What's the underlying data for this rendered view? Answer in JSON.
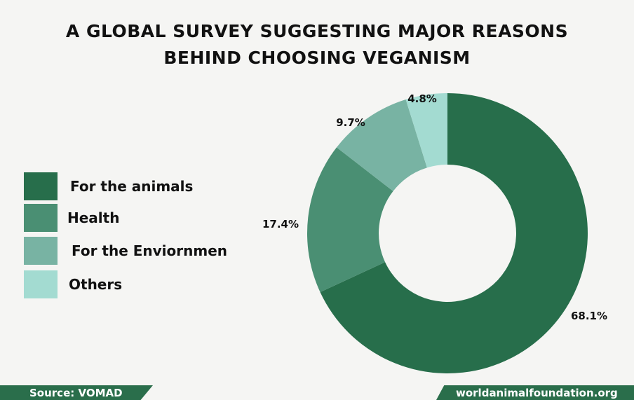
{
  "title_line1": "A GLOBAL SURVEY SUGGESTING MAJOR REASONS",
  "title_line2": "BEHIND CHOOSING VEGANISM",
  "source": "Source: VOMAD",
  "website": "worldanimalfoundation.org",
  "chart_data": {
    "type": "pie",
    "variant": "donut",
    "title": "A GLOBAL SURVEY SUGGESTING MAJOR REASONS BEHIND CHOOSING VEGANISM",
    "legend_position": "left",
    "categories": [
      "For the animals",
      "Health",
      "For the Enviornmen",
      "Others"
    ],
    "values": [
      68.1,
      17.4,
      9.7,
      4.8
    ],
    "value_labels": [
      "68.1%",
      "17.4%",
      "9.7%",
      "4.8%"
    ],
    "colors": [
      "#276e4b",
      "#4a8f73",
      "#78b3a3",
      "#a3dbd1"
    ]
  }
}
